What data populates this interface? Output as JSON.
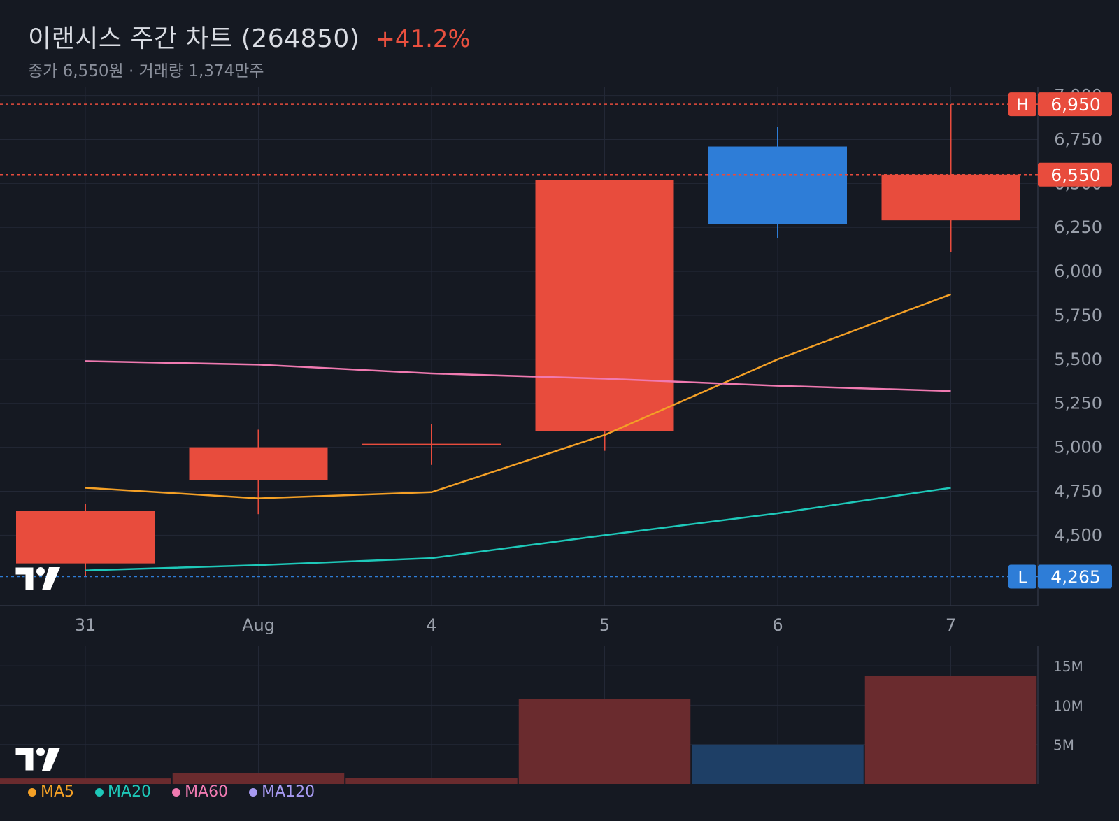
{
  "header": {
    "title": "이랜시스 주간 차트 (264850)",
    "change": "+41.2%",
    "subtitle": "종가 6,550원 · 거래량 1,374만주"
  },
  "colors": {
    "up": "#e84c3d",
    "down": "#2e7dd7",
    "vol_up": "#6a2b2e",
    "vol_down": "#1e3f66",
    "ma5": "#f4a026",
    "ma20": "#1ec8b9",
    "ma60": "#f07ab1",
    "ma120": "#a79af2"
  },
  "chart_data": [
    {
      "type": "candlestick",
      "categories": [
        "31",
        "Aug",
        "4",
        "5",
        "6",
        "7"
      ],
      "series": [
        {
          "x": "31",
          "open": 4340,
          "close": 4640,
          "high": 4680,
          "low": 4265
        },
        {
          "x": "Aug",
          "open": 4815,
          "close": 5000,
          "high": 5100,
          "low": 4620
        },
        {
          "x": "4",
          "open": 5020,
          "close": 5020,
          "high": 5130,
          "low": 4900
        },
        {
          "x": "5",
          "open": 5090,
          "close": 6520,
          "high": 6520,
          "low": 4980
        },
        {
          "x": "6",
          "open": 6710,
          "close": 6270,
          "high": 6820,
          "low": 6190
        },
        {
          "x": "7",
          "open": 6290,
          "close": 6550,
          "high": 6950,
          "low": 6110
        }
      ],
      "moving_averages": [
        {
          "name": "MA5",
          "values": [
            4770,
            4710,
            4745,
            5070,
            5500,
            5870
          ]
        },
        {
          "name": "MA20",
          "values": [
            4300,
            4330,
            4370,
            4500,
            4625,
            4770
          ]
        },
        {
          "name": "MA60",
          "values": [
            5490,
            5470,
            5420,
            5390,
            5350,
            5320
          ]
        }
      ],
      "ylim": [
        4100,
        7050
      ],
      "yticks": [
        4500,
        4750,
        5000,
        5250,
        5500,
        5750,
        6000,
        6250,
        6500,
        6750,
        7000
      ],
      "ytick_labels": [
        "4,500",
        "4,750",
        "5,000",
        "5,250",
        "5,500",
        "5,750",
        "6,000",
        "6,250",
        "6,500",
        "6,750",
        "7,000"
      ],
      "markers": {
        "high": {
          "tag": "H",
          "value": 6950,
          "label": "6,950"
        },
        "close": {
          "value": 6550,
          "label": "6,550"
        },
        "low": {
          "tag": "L",
          "value": 4265,
          "label": "4,265"
        }
      },
      "grid": true
    },
    {
      "type": "bar",
      "categories": [
        "31",
        "Aug",
        "4",
        "5",
        "6",
        "7"
      ],
      "values": [
        0.7,
        1.4,
        0.8,
        10.8,
        5.0,
        13.74
      ],
      "direction": [
        "up",
        "up",
        "up",
        "up",
        "down",
        "up"
      ],
      "unit": "M",
      "ylim": [
        0,
        17.5
      ],
      "yticks": [
        5,
        10,
        15
      ],
      "ytick_labels": [
        "5M",
        "10M",
        "15M"
      ]
    }
  ],
  "legend": [
    {
      "name": "MA5",
      "color": "#f4a026"
    },
    {
      "name": "MA20",
      "color": "#1ec8b9"
    },
    {
      "name": "MA60",
      "color": "#f07ab1"
    },
    {
      "name": "MA120",
      "color": "#a79af2"
    }
  ],
  "logos": [
    "tradingview-logo",
    "tradingview-logo"
  ]
}
